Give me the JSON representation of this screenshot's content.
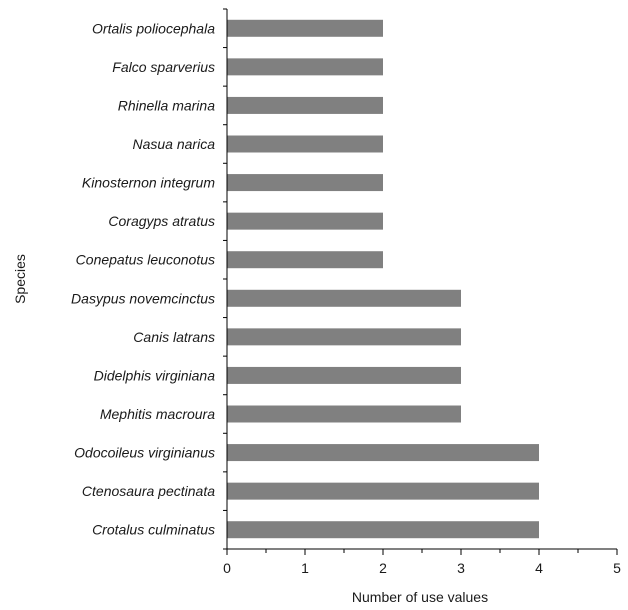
{
  "chart_data": {
    "type": "bar",
    "orientation": "horizontal",
    "categories": [
      "Ortalis poliocephala",
      "Falco sparverius",
      "Rhinella marina",
      "Nasua narica",
      "Kinosternon integrum",
      "Coragyps atratus",
      "Conepatus leuconotus",
      "Dasypus novemcinctus",
      "Canis latrans",
      "Didelphis virginiana",
      "Mephitis macroura",
      "Odocoileus virginianus",
      "Ctenosaura pectinata",
      "Crotalus culminatus"
    ],
    "values": [
      2,
      2,
      2,
      2,
      2,
      2,
      2,
      3,
      3,
      3,
      3,
      4,
      4,
      4
    ],
    "xlabel": "Number of use values",
    "ylabel": "Species",
    "xlim": [
      0,
      5
    ],
    "xticks": [
      "0",
      "1",
      "2",
      "3",
      "4",
      "5"
    ],
    "bar_color": "#808080",
    "grid": false
  }
}
